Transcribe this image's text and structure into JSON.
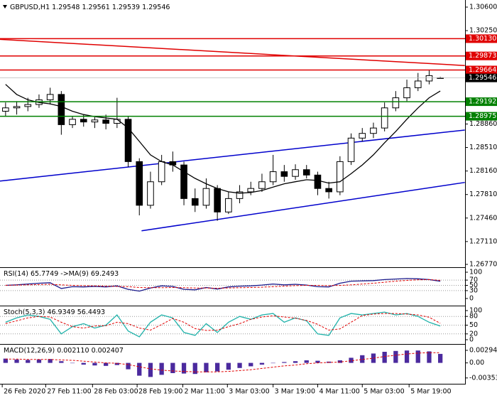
{
  "chart_data": [
    {
      "type": "candlestick",
      "symbol": "GBPUSD,H1",
      "xlim": [
        0,
        40
      ],
      "xticks": [
        {
          "value": 0.2,
          "label": "26 Feb 2020"
        },
        {
          "value": 4.1,
          "label": "27 Feb 11:00"
        },
        {
          "value": 8.3,
          "label": "28 Feb 03:00"
        },
        {
          "value": 12.3,
          "label": "28 Feb 19:00"
        },
        {
          "value": 16.4,
          "label": "2 Mar 11:00"
        },
        {
          "value": 20.4,
          "label": "3 Mar 03:00"
        },
        {
          "value": 24.5,
          "label": "3 Mar 19:00"
        },
        {
          "value": 28.5,
          "label": "4 Mar 11:00"
        },
        {
          "value": 32.5,
          "label": "5 Mar 03:00"
        },
        {
          "value": 36.7,
          "label": "5 Mar 19:00"
        }
      ],
      "ylim": [
        1.2677,
        1.306
      ],
      "yticks": [
        {
          "value": 1.306,
          "label": "1.30600"
        },
        {
          "value": 1.3025,
          "label": "1.30250"
        },
        {
          "value": 1.2886,
          "label": "1.28860"
        },
        {
          "value": 1.2851,
          "label": "1.28510"
        },
        {
          "value": 1.2816,
          "label": "1.28160"
        },
        {
          "value": 1.2781,
          "label": "1.27810"
        },
        {
          "value": 1.2746,
          "label": "1.27460"
        },
        {
          "value": 1.2711,
          "label": "1.27110"
        },
        {
          "value": 1.2677,
          "label": "1.26770"
        }
      ],
      "open": [
        1.2905,
        1.291,
        1.2912,
        1.2915,
        1.2922,
        1.293,
        1.2885,
        1.2893,
        1.2889,
        1.2892,
        1.2887,
        1.2893,
        1.283,
        1.2765,
        1.28,
        1.283,
        1.2825,
        1.2775,
        1.2765,
        1.279,
        1.2755,
        1.2775,
        1.2785,
        1.279,
        1.28,
        1.2815,
        1.2808,
        1.2818,
        1.281,
        1.279,
        1.2785,
        1.283,
        1.2865,
        1.2872,
        1.288,
        1.291,
        1.2925,
        1.294,
        1.295,
        1.29548
      ],
      "high": [
        1.2918,
        1.292,
        1.2925,
        1.293,
        1.294,
        1.2935,
        1.2898,
        1.29,
        1.2896,
        1.29,
        1.2925,
        1.2897,
        1.2835,
        1.2815,
        1.284,
        1.2845,
        1.283,
        1.279,
        1.2805,
        1.2795,
        1.2785,
        1.2795,
        1.28,
        1.2812,
        1.284,
        1.2825,
        1.2826,
        1.2825,
        1.2815,
        1.28,
        1.2838,
        1.2872,
        1.288,
        1.2888,
        1.2918,
        1.2935,
        1.2952,
        1.2962,
        1.2966,
        1.29561
      ],
      "low": [
        1.2898,
        1.29,
        1.2905,
        1.291,
        1.2915,
        1.287,
        1.288,
        1.2882,
        1.288,
        1.2878,
        1.288,
        1.2822,
        1.275,
        1.276,
        1.2795,
        1.2815,
        1.2765,
        1.2755,
        1.276,
        1.2742,
        1.2752,
        1.2768,
        1.278,
        1.2785,
        1.2795,
        1.28,
        1.2803,
        1.2805,
        1.278,
        1.2775,
        1.278,
        1.2825,
        1.286,
        1.2865,
        1.2875,
        1.2905,
        1.292,
        1.2935,
        1.2945,
        1.29539
      ],
      "close": [
        1.291,
        1.2912,
        1.2915,
        1.2922,
        1.293,
        1.2885,
        1.2893,
        1.2889,
        1.2892,
        1.2887,
        1.2893,
        1.283,
        1.2765,
        1.28,
        1.283,
        1.2825,
        1.2775,
        1.2765,
        1.279,
        1.2755,
        1.2775,
        1.2785,
        1.279,
        1.28,
        1.2815,
        1.2808,
        1.2818,
        1.281,
        1.279,
        1.2785,
        1.283,
        1.2865,
        1.2872,
        1.288,
        1.291,
        1.2925,
        1.294,
        1.295,
        1.2958,
        1.29546
      ],
      "up_color": "#ffffff",
      "down_color": "#000000",
      "candle_edge": "#000000",
      "ma": {
        "color": "#000000",
        "values": [
          1.2945,
          1.293,
          1.2922,
          1.2918,
          1.2916,
          1.2912,
          1.2905,
          1.29,
          1.2897,
          1.2895,
          1.2893,
          1.288,
          1.286,
          1.284,
          1.283,
          1.2825,
          1.2815,
          1.2805,
          1.2797,
          1.279,
          1.2785,
          1.2783,
          1.2784,
          1.2787,
          1.2792,
          1.2797,
          1.28,
          1.2803,
          1.2802,
          1.2798,
          1.28,
          1.2812,
          1.2825,
          1.284,
          1.2858,
          1.2875,
          1.2893,
          1.291,
          1.2925,
          1.2935
        ]
      },
      "levels": [
        {
          "value": 1.3013,
          "label": "1.30130",
          "color": "#e00000"
        },
        {
          "value": 1.29873,
          "color": "#e00000"
        },
        {
          "value": 1.29664,
          "color": "#e00000"
        },
        {
          "value": 1.29192,
          "color": "#008000"
        },
        {
          "value": 1.28975,
          "color": "#008000"
        }
      ],
      "trendlines": [
        {
          "color": "#e00000",
          "points": [
            [
              0,
              1.3012
            ],
            [
              41.7,
              1.2973
            ]
          ]
        },
        {
          "color": "#0000cc",
          "points": [
            [
              0,
              1.2801
            ],
            [
              41.7,
              1.2877
            ]
          ]
        },
        {
          "color": "#0000cc",
          "points": [
            [
              12.7,
              1.2727
            ],
            [
              41.7,
              1.2799
            ]
          ]
        }
      ],
      "price_box_color": "#000000"
    },
    {
      "type": "line",
      "title": "RSI(14)",
      "ylim": [
        0,
        100
      ],
      "yticks": [
        100,
        70,
        50,
        30,
        0
      ],
      "grid": true,
      "series": [
        {
          "name": null,
          "color": "#1a1a8c",
          "values": [
            50,
            52,
            55,
            58,
            60,
            38,
            45,
            44,
            46,
            44,
            48,
            35,
            28,
            40,
            48,
            46,
            35,
            33,
            42,
            36,
            44,
            47,
            48,
            51,
            55,
            52,
            54,
            51,
            45,
            44,
            58,
            66,
            67,
            68,
            72,
            74,
            76,
            75,
            72,
            65.7749
          ]
        },
        {
          "name": "->MA(9)",
          "color": "#e00000",
          "dashed": true,
          "values": [
            50,
            51,
            52,
            53,
            54,
            52,
            50,
            49,
            48,
            47,
            46,
            45,
            42,
            41,
            41,
            42,
            41,
            40,
            40,
            39,
            40,
            41,
            42,
            43,
            45,
            47,
            49,
            50,
            50,
            49,
            50,
            52,
            55,
            58,
            62,
            66,
            69,
            71,
            72,
            69.2493
          ]
        }
      ]
    },
    {
      "type": "line",
      "title": "Stoch(5,3,3)",
      "ylim": [
        0,
        100
      ],
      "yticks": [
        100,
        80,
        50,
        20,
        0
      ],
      "grid": true,
      "series": [
        {
          "name": null,
          "color": "#20b2aa",
          "values": [
            60,
            75,
            85,
            80,
            70,
            20,
            45,
            55,
            40,
            50,
            85,
            30,
            10,
            60,
            85,
            75,
            25,
            15,
            55,
            25,
            60,
            80,
            70,
            85,
            90,
            60,
            75,
            65,
            20,
            15,
            75,
            90,
            85,
            90,
            95,
            85,
            90,
            80,
            60,
            46.9349
          ]
        },
        {
          "name": null,
          "color": "#e00000",
          "dashed": true,
          "values": [
            55,
            65,
            75,
            80,
            78,
            60,
            45,
            40,
            47,
            48,
            60,
            55,
            40,
            33,
            52,
            73,
            60,
            38,
            32,
            33,
            45,
            55,
            70,
            78,
            82,
            78,
            74,
            66,
            53,
            33,
            37,
            60,
            83,
            88,
            90,
            90,
            88,
            85,
            77,
            56.4493
          ]
        }
      ]
    },
    {
      "type": "macd",
      "title": "MACD(12,26,9)",
      "ylim": [
        -0.0049,
        0.0041
      ],
      "yticks": [
        0.002944,
        {
          "value": 0,
          "label": "0.00"
        },
        -0.003531
      ],
      "grid": false,
      "color": "#4b2a9e",
      "values": [
        0.001,
        0.0008,
        0.0007,
        0.0008,
        0.0009,
        0.0004,
        0.0,
        -0.0004,
        -0.0006,
        -0.0007,
        -0.0005,
        -0.0015,
        -0.003,
        -0.0033,
        -0.0028,
        -0.0024,
        -0.0025,
        -0.0026,
        -0.0022,
        -0.002,
        -0.0016,
        -0.0012,
        -0.0008,
        -0.0004,
        0.0,
        0.0002,
        0.0004,
        0.0006,
        0.0005,
        0.0003,
        0.0006,
        0.0012,
        0.0018,
        0.0022,
        0.0026,
        0.0028,
        0.0029,
        0.0029,
        0.0027,
        0.00211
      ],
      "value_labels": [
        null,
        null,
        null,
        null,
        null,
        null,
        null,
        null,
        null,
        null,
        null,
        null,
        null,
        null,
        null,
        null,
        null,
        null,
        null,
        null,
        null,
        null,
        null,
        null,
        null,
        null,
        null,
        null,
        null,
        null,
        null,
        null,
        null,
        null,
        null,
        null,
        null,
        null,
        null,
        "0.002110"
      ],
      "signal": {
        "color": "#e00000",
        "values": [
          0.0009,
          0.0009,
          0.0008,
          0.0008,
          0.0008,
          0.0007,
          0.0006,
          0.0004,
          0.0002,
          0.0,
          -0.0001,
          -0.0004,
          -0.0009,
          -0.0014,
          -0.0017,
          -0.0019,
          -0.002,
          -0.0021,
          -0.0021,
          -0.0021,
          -0.002,
          -0.0018,
          -0.0016,
          -0.0013,
          -0.001,
          -0.0007,
          -0.0005,
          -0.0002,
          0.0,
          0.0001,
          0.0002,
          0.0005,
          0.0008,
          0.0011,
          0.0015,
          0.0018,
          0.0021,
          0.0023,
          0.0024,
          0.002407
        ]
      }
    }
  ]
}
